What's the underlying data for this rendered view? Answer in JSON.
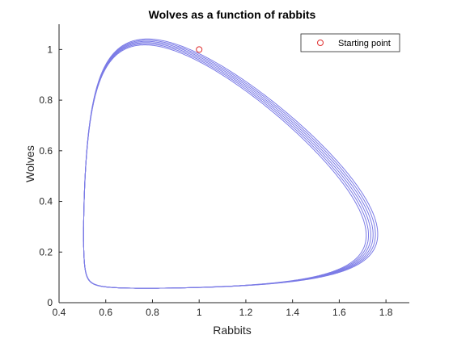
{
  "chart_data": {
    "type": "line",
    "title": "Wolves as a function of rabbits",
    "xlabel": "Rabbits",
    "ylabel": "Wolves",
    "xlim": [
      0.4,
      1.9
    ],
    "ylim": [
      0,
      1.1
    ],
    "xticks": [
      "0.4",
      "0.6",
      "0.8",
      "1",
      "1.2",
      "1.4",
      "1.6",
      "1.8"
    ],
    "yticks": [
      "0",
      "0.2",
      "0.4",
      "0.6",
      "0.8",
      "1"
    ],
    "grid": false,
    "legend_position": "top-right",
    "series": [
      {
        "type": "line",
        "color": "#7b7be6",
        "orbit_min": [
          1.0,
          0.057
        ],
        "orbit_max": [
          1.74,
          1.03
        ],
        "orbit_cycles": 6,
        "orbit_spread": 0.02
      },
      {
        "name": "Starting point",
        "type": "scatter",
        "marker": "circle",
        "color": "#e03030",
        "x": [
          1.0
        ],
        "y": [
          1.0
        ]
      }
    ]
  }
}
